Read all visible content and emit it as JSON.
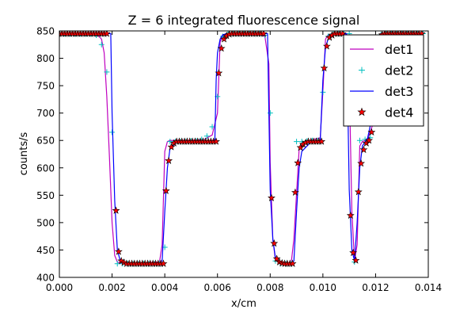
{
  "chart_data": {
    "type": "line",
    "title": "Z = 6 integrated fluorescence signal",
    "xlabel": "x/cm",
    "ylabel": "counts/s",
    "xlim": [
      0.0,
      0.014
    ],
    "ylim": [
      400,
      850
    ],
    "xticks": [
      "0.000",
      "0.002",
      "0.004",
      "0.006",
      "0.008",
      "0.010",
      "0.012",
      "0.014"
    ],
    "yticks": [
      "400",
      "450",
      "500",
      "550",
      "600",
      "650",
      "700",
      "750",
      "800",
      "850"
    ],
    "grid": false,
    "legend_position": "top-right",
    "series": [
      {
        "name": "det1",
        "color": "#bf00bf",
        "marker": "none",
        "x": [
          0.0,
          0.0014,
          0.0016,
          0.0017,
          0.0018,
          0.0019,
          0.002,
          0.0021,
          0.0022,
          0.0024,
          0.0028,
          0.0038,
          0.0039,
          0.004,
          0.0041,
          0.0042,
          0.0045,
          0.005,
          0.0055,
          0.0058,
          0.006,
          0.0061,
          0.0062,
          0.0063,
          0.0065,
          0.0075,
          0.0078,
          0.00795,
          0.008,
          0.0081,
          0.0082,
          0.0084,
          0.0086,
          0.0088,
          0.0089,
          0.0091,
          0.0093,
          0.0095,
          0.0099,
          0.01,
          0.0101,
          0.0102,
          0.0104,
          0.0106,
          0.0108,
          0.0109,
          0.011,
          0.0111,
          0.0112,
          0.0113,
          0.0114,
          0.0115,
          0.0117,
          0.0119,
          0.012,
          0.0121,
          0.0123,
          0.0126,
          0.0138
        ],
        "y": [
          845,
          845,
          835,
          810,
          730,
          620,
          500,
          440,
          428,
          425,
          425,
          428,
          460,
          630,
          648,
          650,
          650,
          650,
          652,
          660,
          700,
          830,
          840,
          845,
          845,
          845,
          840,
          790,
          610,
          470,
          432,
          426,
          425,
          427,
          470,
          635,
          648,
          650,
          655,
          740,
          835,
          843,
          845,
          845,
          845,
          843,
          760,
          520,
          430,
          460,
          640,
          648,
          652,
          680,
          800,
          840,
          845,
          845,
          845
        ]
      },
      {
        "name": "det2",
        "color": "#00bfbf",
        "marker": "plus",
        "x": [
          0.0,
          0.0002,
          0.0004,
          0.0006,
          0.0008,
          0.001,
          0.0012,
          0.0014,
          0.0016,
          0.0018,
          0.002,
          0.0022,
          0.0024,
          0.0026,
          0.0028,
          0.003,
          0.0032,
          0.0034,
          0.0036,
          0.0038,
          0.004,
          0.0042,
          0.0044,
          0.0046,
          0.0048,
          0.005,
          0.0052,
          0.0054,
          0.0056,
          0.0058,
          0.006,
          0.0062,
          0.0064,
          0.0066,
          0.0068,
          0.007,
          0.0072,
          0.0074,
          0.0076,
          0.0078,
          0.008,
          0.0082,
          0.0084,
          0.0086,
          0.0088,
          0.009,
          0.0092,
          0.0094,
          0.0096,
          0.0098,
          0.01,
          0.0102,
          0.0104,
          0.0106,
          0.0108,
          0.011,
          0.0112,
          0.0114,
          0.0116,
          0.0118,
          0.012,
          0.0122,
          0.0124,
          0.0126,
          0.0128,
          0.013,
          0.0132,
          0.0134,
          0.0136,
          0.0138
        ],
        "y": [
          845,
          845,
          845,
          845,
          845,
          845,
          845,
          842,
          825,
          775,
          665,
          425,
          425,
          425,
          425,
          425,
          425,
          425,
          425,
          425,
          455,
          648,
          648,
          648,
          648,
          649,
          649,
          652,
          658,
          675,
          730,
          840,
          845,
          845,
          845,
          845,
          845,
          845,
          845,
          842,
          700,
          430,
          425,
          425,
          425,
          648,
          648,
          649,
          650,
          650,
          738,
          840,
          845,
          845,
          845,
          845,
          428,
          650,
          652,
          655,
          740,
          843,
          845,
          845,
          845,
          845,
          845,
          845,
          845,
          845
        ]
      },
      {
        "name": "det3",
        "color": "#0000ff",
        "marker": "none",
        "x": [
          0.0,
          0.0018,
          0.00195,
          0.002,
          0.0021,
          0.0022,
          0.0023,
          0.0025,
          0.003,
          0.0038,
          0.0039,
          0.004,
          0.0041,
          0.0042,
          0.0045,
          0.005,
          0.0055,
          0.0059,
          0.00595,
          0.006,
          0.0061,
          0.0062,
          0.0064,
          0.007,
          0.0076,
          0.0077,
          0.0078,
          0.0079,
          0.008,
          0.0081,
          0.0082,
          0.0084,
          0.0088,
          0.0089,
          0.009,
          0.0091,
          0.0092,
          0.0095,
          0.0099,
          0.01,
          0.0101,
          0.0102,
          0.0103,
          0.0105,
          0.0108,
          0.01085,
          0.0109,
          0.011,
          0.0111,
          0.0112,
          0.0113,
          0.0114,
          0.0115,
          0.0117,
          0.0119,
          0.012,
          0.0121,
          0.0122,
          0.0125,
          0.0138
        ],
        "y": [
          845,
          845,
          845,
          700,
          540,
          450,
          432,
          427,
          425,
          425,
          430,
          520,
          600,
          636,
          648,
          648,
          649,
          650,
          760,
          810,
          835,
          843,
          845,
          845,
          845,
          845,
          845,
          845,
          560,
          470,
          435,
          428,
          425,
          430,
          520,
          600,
          630,
          645,
          650,
          760,
          820,
          835,
          840,
          845,
          845,
          845,
          845,
          560,
          450,
          430,
          500,
          600,
          640,
          655,
          700,
          820,
          840,
          845,
          845,
          845
        ]
      },
      {
        "name": "det4",
        "color": "#ff0000",
        "marker": "star",
        "x": [
          0.0,
          0.0001,
          0.0002,
          0.0003,
          0.0004,
          0.0005,
          0.0006,
          0.0007,
          0.0008,
          0.0009,
          0.001,
          0.0011,
          0.0012,
          0.0013,
          0.0014,
          0.0015,
          0.0016,
          0.0017,
          0.0018,
          0.00215,
          0.00225,
          0.00235,
          0.00245,
          0.00255,
          0.00265,
          0.00275,
          0.00285,
          0.00295,
          0.00305,
          0.00315,
          0.00325,
          0.00335,
          0.00345,
          0.00355,
          0.00365,
          0.00375,
          0.00385,
          0.00395,
          0.00405,
          0.00415,
          0.00425,
          0.00435,
          0.00445,
          0.00455,
          0.00465,
          0.00475,
          0.00485,
          0.00495,
          0.00505,
          0.00515,
          0.00525,
          0.00535,
          0.00545,
          0.00555,
          0.00565,
          0.00575,
          0.00585,
          0.00595,
          0.00605,
          0.00615,
          0.00625,
          0.00635,
          0.00645,
          0.00655,
          0.00665,
          0.00675,
          0.00685,
          0.00695,
          0.00705,
          0.00715,
          0.00725,
          0.00735,
          0.00745,
          0.00755,
          0.00765,
          0.00775,
          0.00805,
          0.00815,
          0.00825,
          0.00835,
          0.00845,
          0.00855,
          0.00865,
          0.00875,
          0.00885,
          0.00895,
          0.00905,
          0.00915,
          0.00925,
          0.00935,
          0.00945,
          0.00955,
          0.00965,
          0.00975,
          0.00985,
          0.00995,
          0.01005,
          0.01015,
          0.01025,
          0.01035,
          0.01045,
          0.01055,
          0.01065,
          0.01075,
          0.01105,
          0.01115,
          0.01125,
          0.01135,
          0.01145,
          0.01155,
          0.01165,
          0.01175,
          0.01185,
          0.01195,
          0.01205,
          0.01215,
          0.01225,
          0.01235,
          0.01245,
          0.01255,
          0.01265,
          0.01275,
          0.01285,
          0.01295,
          0.01305,
          0.01315,
          0.01325,
          0.01335,
          0.01345,
          0.01355,
          0.01365,
          0.01375
        ],
        "y": [
          845,
          845,
          845,
          845,
          845,
          845,
          845,
          845,
          845,
          845,
          845,
          845,
          845,
          845,
          845,
          845,
          845,
          845,
          845,
          522,
          447,
          430,
          427,
          425,
          425,
          425,
          425,
          425,
          425,
          425,
          425,
          425,
          425,
          425,
          425,
          425,
          425,
          425,
          558,
          613,
          638,
          645,
          648,
          648,
          648,
          648,
          648,
          648,
          648,
          648,
          648,
          648,
          648,
          648,
          648,
          648,
          648,
          648,
          773,
          818,
          835,
          841,
          844,
          845,
          845,
          845,
          845,
          845,
          845,
          845,
          845,
          845,
          845,
          845,
          845,
          845,
          545,
          462,
          434,
          428,
          426,
          425,
          425,
          425,
          425,
          555,
          609,
          637,
          643,
          646,
          648,
          648,
          648,
          648,
          648,
          648,
          782,
          822,
          838,
          842,
          845,
          845,
          845,
          845,
          513,
          445,
          431,
          556,
          608,
          633,
          645,
          650,
          665,
          760,
          820,
          838,
          843,
          845,
          845,
          845,
          845,
          845,
          845,
          845,
          845,
          845,
          845,
          845,
          845,
          845,
          845,
          845
        ]
      }
    ]
  }
}
